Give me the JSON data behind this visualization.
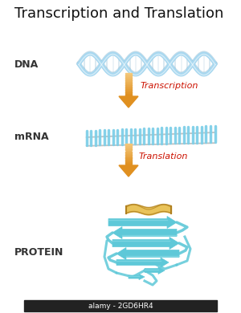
{
  "title": "Transcription and Translation",
  "title_fontsize": 13,
  "title_color": "#111111",
  "bg_color": "#ffffff",
  "label_dna": "DNA",
  "label_mrna": "mRNA",
  "label_protein": "PROTEIN",
  "label_fontsize": 9,
  "label_color": "#333333",
  "arrow_label_transcription": "Transcription",
  "arrow_label_translation": "Translation",
  "arrow_label_fontsize": 8,
  "arrow_label_color": "#cc1100",
  "arrow_color_light": "#f5c87a",
  "arrow_color_dark": "#e09020",
  "dna_color_light": "#a8d8f0",
  "dna_color_mid": "#6ab0d8",
  "dna_color_dark": "#4a90b8",
  "mrna_color": "#7ecfe8",
  "mrna_backbone": "#999999",
  "protein_color_main": "#5ec8d8",
  "protein_color_light": "#8ddde8",
  "protein_color_dark": "#3aa8c0",
  "protein_helix": "#e8c050",
  "protein_helix_dark": "#b08020",
  "watermark": "alamy - 2GD6HR4",
  "watermark_color": "#ffffff",
  "watermark_bg": "#222222"
}
